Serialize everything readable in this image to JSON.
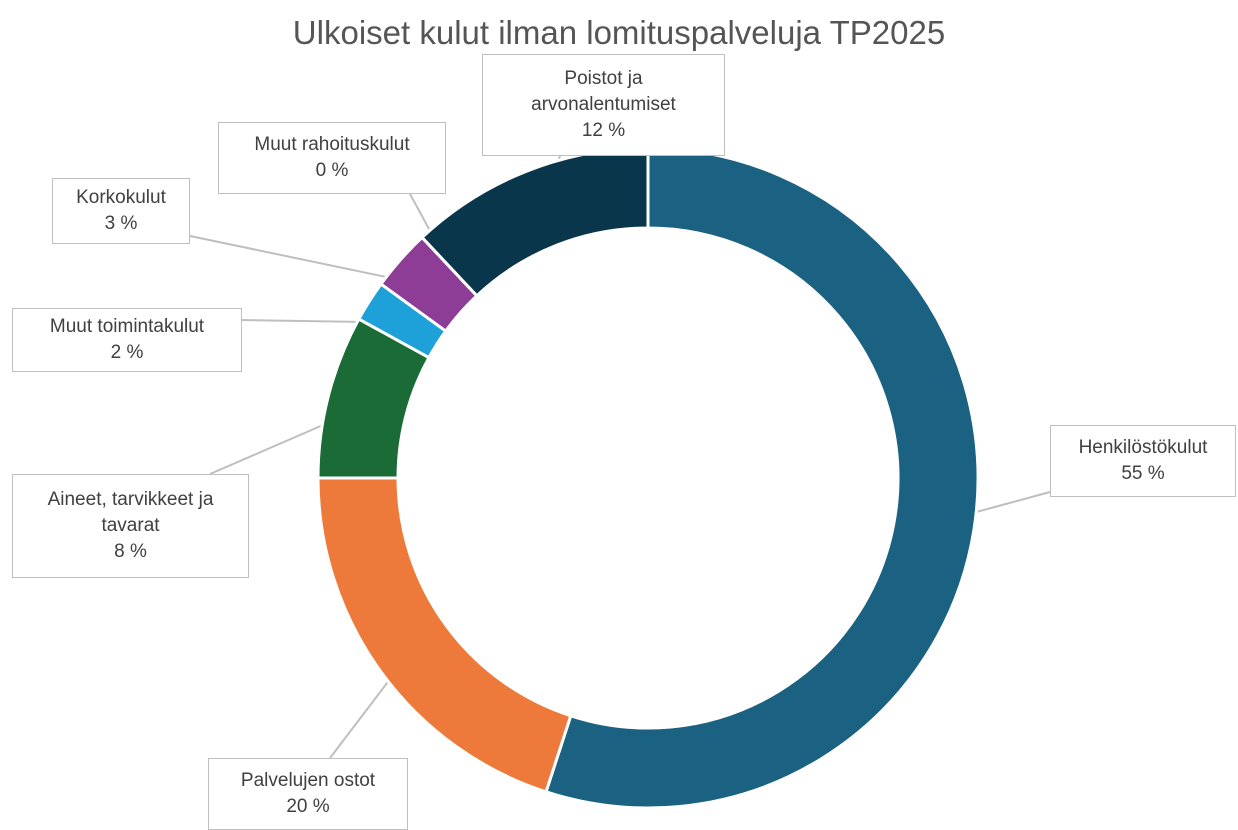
{
  "chart_data": {
    "type": "donut",
    "title": "Ulkoiset kulut ilman lomituspalveluja TP2025",
    "categories": [
      "Henkilöstökulut",
      "Palvelujen ostot",
      "Aineet, tarvikkeet ja tavarat",
      "Muut toimintakulut",
      "Korkokulut",
      "Muut rahoituskulut",
      "Poistot ja arvonalentumiset"
    ],
    "values": [
      55,
      20,
      8,
      2,
      3,
      0,
      12
    ],
    "value_labels": [
      "55 %",
      "20 %",
      "8 %",
      "2 %",
      "3 %",
      "0 %",
      "12 %"
    ],
    "colors": [
      "#1b6181",
      "#ed7a3b",
      "#1a6b35",
      "#1ea0d9",
      "#8e3d96",
      "#5b5b5b",
      "#0a364c"
    ]
  }
}
